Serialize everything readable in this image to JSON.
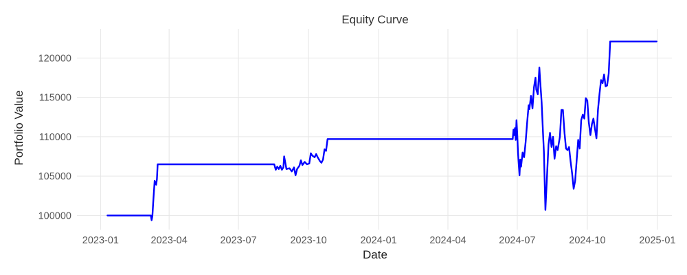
{
  "chart_data": {
    "type": "line",
    "title": "Equity Curve",
    "xlabel": "Date",
    "ylabel": "Portfolio Value",
    "grid": true,
    "x_scale": "time",
    "xlim": [
      "2022-12-01",
      "2025-01-20"
    ],
    "ylim": [
      98200,
      123700
    ],
    "x_ticks": [
      "2023-01",
      "2023-04",
      "2023-07",
      "2023-10",
      "2024-01",
      "2024-04",
      "2024-07",
      "2024-10",
      "2025-01"
    ],
    "y_ticks": [
      100000,
      105000,
      110000,
      115000,
      120000
    ],
    "series": [
      {
        "color": "#0000ff",
        "points": [
          [
            "2023-01-10",
            100000
          ],
          [
            "2023-03-08",
            100000
          ],
          [
            "2023-03-09",
            99400
          ],
          [
            "2023-03-10",
            99900
          ],
          [
            "2023-03-11",
            101500
          ],
          [
            "2023-03-13",
            104400
          ],
          [
            "2023-03-15",
            103900
          ],
          [
            "2023-03-16",
            104600
          ],
          [
            "2023-03-17",
            106500
          ],
          [
            "2023-08-17",
            106500
          ],
          [
            "2023-08-19",
            105800
          ],
          [
            "2023-08-21",
            106200
          ],
          [
            "2023-08-23",
            105900
          ],
          [
            "2023-08-25",
            106300
          ],
          [
            "2023-08-27",
            105800
          ],
          [
            "2023-08-29",
            106100
          ],
          [
            "2023-08-30",
            107500
          ],
          [
            "2023-08-31",
            107000
          ],
          [
            "2023-09-02",
            105900
          ],
          [
            "2023-09-06",
            106000
          ],
          [
            "2023-09-09",
            105600
          ],
          [
            "2023-09-12",
            106100
          ],
          [
            "2023-09-14",
            105100
          ],
          [
            "2023-09-16",
            105900
          ],
          [
            "2023-09-19",
            106300
          ],
          [
            "2023-09-21",
            107000
          ],
          [
            "2023-09-23",
            106400
          ],
          [
            "2023-09-26",
            106800
          ],
          [
            "2023-09-29",
            106500
          ],
          [
            "2023-10-02",
            106600
          ],
          [
            "2023-10-04",
            107900
          ],
          [
            "2023-10-06",
            107600
          ],
          [
            "2023-10-09",
            107400
          ],
          [
            "2023-10-11",
            107800
          ],
          [
            "2023-10-13",
            107400
          ],
          [
            "2023-10-16",
            106900
          ],
          [
            "2023-10-18",
            106700
          ],
          [
            "2023-10-20",
            107100
          ],
          [
            "2023-10-22",
            108400
          ],
          [
            "2023-10-24",
            108200
          ],
          [
            "2023-10-26",
            109700
          ],
          [
            "2024-06-25",
            109700
          ],
          [
            "2024-06-26",
            110900
          ],
          [
            "2024-06-27",
            110200
          ],
          [
            "2024-06-28",
            111100
          ],
          [
            "2024-06-29",
            109600
          ],
          [
            "2024-06-30",
            112100
          ],
          [
            "2024-07-01",
            110400
          ],
          [
            "2024-07-02",
            108000
          ],
          [
            "2024-07-03",
            106500
          ],
          [
            "2024-07-04",
            105100
          ],
          [
            "2024-07-05",
            107100
          ],
          [
            "2024-07-06",
            106200
          ],
          [
            "2024-07-08",
            108000
          ],
          [
            "2024-07-10",
            107400
          ],
          [
            "2024-07-12",
            109300
          ],
          [
            "2024-07-14",
            111800
          ],
          [
            "2024-07-16",
            114000
          ],
          [
            "2024-07-17",
            113500
          ],
          [
            "2024-07-19",
            115200
          ],
          [
            "2024-07-21",
            113600
          ],
          [
            "2024-07-23",
            116300
          ],
          [
            "2024-07-25",
            117500
          ],
          [
            "2024-07-26",
            116000
          ],
          [
            "2024-07-28",
            115400
          ],
          [
            "2024-07-30",
            118800
          ],
          [
            "2024-07-31",
            117200
          ],
          [
            "2024-08-02",
            114400
          ],
          [
            "2024-08-04",
            110100
          ],
          [
            "2024-08-05",
            108100
          ],
          [
            "2024-08-07",
            100700
          ],
          [
            "2024-08-09",
            104900
          ],
          [
            "2024-08-11",
            109000
          ],
          [
            "2024-08-13",
            110500
          ],
          [
            "2024-08-15",
            108700
          ],
          [
            "2024-08-17",
            110000
          ],
          [
            "2024-08-19",
            107200
          ],
          [
            "2024-08-21",
            108800
          ],
          [
            "2024-08-23",
            108300
          ],
          [
            "2024-08-26",
            110000
          ],
          [
            "2024-08-28",
            113400
          ],
          [
            "2024-08-30",
            113400
          ],
          [
            "2024-09-01",
            110500
          ],
          [
            "2024-09-03",
            108500
          ],
          [
            "2024-09-05",
            108300
          ],
          [
            "2024-09-07",
            108700
          ],
          [
            "2024-09-09",
            106900
          ],
          [
            "2024-09-11",
            105400
          ],
          [
            "2024-09-13",
            103400
          ],
          [
            "2024-09-15",
            104400
          ],
          [
            "2024-09-17",
            107000
          ],
          [
            "2024-09-19",
            109600
          ],
          [
            "2024-09-21",
            108500
          ],
          [
            "2024-09-23",
            112100
          ],
          [
            "2024-09-25",
            112800
          ],
          [
            "2024-09-27",
            112300
          ],
          [
            "2024-09-29",
            114900
          ],
          [
            "2024-10-01",
            114600
          ],
          [
            "2024-10-03",
            111800
          ],
          [
            "2024-10-05",
            110200
          ],
          [
            "2024-10-07",
            111600
          ],
          [
            "2024-10-09",
            112300
          ],
          [
            "2024-10-11",
            111000
          ],
          [
            "2024-10-13",
            109800
          ],
          [
            "2024-10-15",
            113400
          ],
          [
            "2024-10-17",
            115500
          ],
          [
            "2024-10-19",
            117200
          ],
          [
            "2024-10-21",
            116800
          ],
          [
            "2024-10-23",
            117900
          ],
          [
            "2024-10-25",
            116400
          ],
          [
            "2024-10-27",
            116500
          ],
          [
            "2024-10-29",
            118000
          ],
          [
            "2024-10-31",
            122100
          ],
          [
            "2024-12-31",
            122100
          ]
        ]
      }
    ]
  }
}
